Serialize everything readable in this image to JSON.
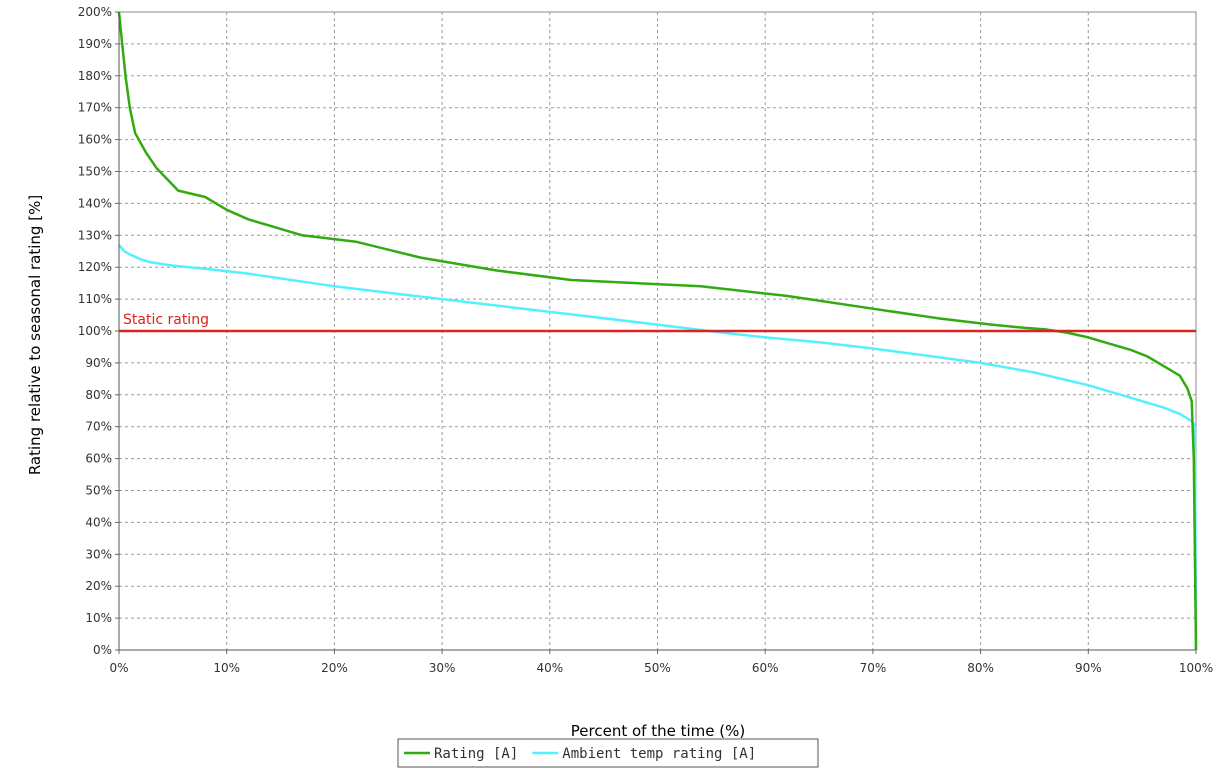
{
  "chart_data": {
    "type": "line",
    "xlabel": "Percent of the time (%)",
    "ylabel": "Rating relative to seasonal rating [%]",
    "xlim": [
      0,
      100
    ],
    "ylim": [
      0,
      200
    ],
    "x_ticks": [
      0,
      10,
      20,
      30,
      40,
      50,
      60,
      70,
      80,
      90,
      100
    ],
    "x_tick_labels": [
      "0%",
      "10%",
      "20%",
      "30%",
      "40%",
      "50%",
      "60%",
      "70%",
      "80%",
      "90%",
      "100%"
    ],
    "y_ticks": [
      0,
      10,
      20,
      30,
      40,
      50,
      60,
      70,
      80,
      90,
      100,
      110,
      120,
      130,
      140,
      150,
      160,
      170,
      180,
      190,
      200
    ],
    "y_tick_labels": [
      "0%",
      "10%",
      "20%",
      "30%",
      "40%",
      "50%",
      "60%",
      "70%",
      "80%",
      "90%",
      "100%",
      "110%",
      "120%",
      "130%",
      "140%",
      "150%",
      "160%",
      "170%",
      "180%",
      "190%",
      "200%"
    ],
    "grid": true,
    "legend_position": "bottom",
    "series": [
      {
        "name": "Rating [A]",
        "color": "#33aa11",
        "x": [
          0,
          0.3,
          0.6,
          1.0,
          1.5,
          2.5,
          3.5,
          5.5,
          8,
          10,
          12,
          14,
          17,
          22,
          28,
          35,
          42,
          54,
          62,
          70,
          76,
          81,
          84,
          86,
          88,
          90,
          92,
          94,
          95.5,
          97,
          98.5,
          99.2,
          99.6,
          99.8,
          99.9,
          100
        ],
        "y": [
          200,
          190,
          180,
          170,
          162,
          156,
          151,
          144,
          142,
          138,
          135,
          133,
          130,
          128,
          123,
          119,
          116,
          114,
          111,
          107,
          104,
          102,
          101,
          100.5,
          99.5,
          98,
          96,
          94,
          92,
          89,
          86,
          82,
          78,
          60,
          30,
          0
        ]
      },
      {
        "name": "Ambient temp rating [A]",
        "color": "#55f0ff",
        "x": [
          0,
          0.5,
          1,
          2,
          3,
          5,
          8,
          12,
          20,
          30,
          40,
          50,
          56,
          60,
          65,
          70,
          80,
          85,
          90,
          95,
          97,
          98.5,
          99.5,
          99.8,
          99.9,
          100
        ],
        "y": [
          127,
          125,
          124,
          122.5,
          121.5,
          120.5,
          119.5,
          118,
          114,
          110,
          106,
          102,
          99.5,
          98,
          96.5,
          94.5,
          90,
          87,
          83,
          78,
          76,
          74,
          72,
          71,
          70,
          0
        ]
      }
    ],
    "annotations": [
      {
        "label": "Static rating",
        "y": 100,
        "color": "#dd2222"
      }
    ]
  }
}
